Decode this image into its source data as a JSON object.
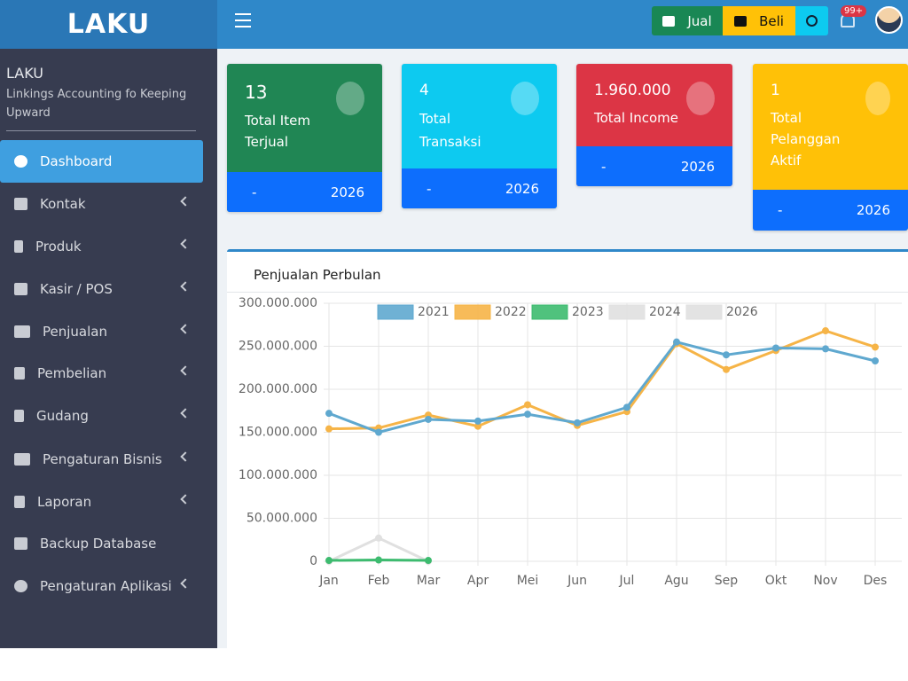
{
  "navbar": {
    "logo": "LAKU",
    "buttons": [
      "Jual",
      "Beli"
    ],
    "notification_badge": "99+"
  },
  "sidebar": {
    "brand": "LAKU",
    "subtitle": "Linkings Accounting fo Keeping Upward",
    "menu": [
      "Dashboard",
      "Kontak",
      "Produk",
      "Kasir / POS",
      "Penjualan",
      "Pembelian",
      "Gudang",
      "Pengaturan Bisnis",
      "Laporan",
      "Backup Database",
      "Pengaturan Aplikasi"
    ]
  },
  "cards": [
    {
      "value": "13",
      "label": "Total Item Terjual",
      "footer_left": "-",
      "footer_right": "2026"
    },
    {
      "value": "4",
      "label": "Total Transaksi",
      "footer_left": "-",
      "footer_right": "2026"
    },
    {
      "value": "1.960.000",
      "label": "Total Income",
      "footer_left": "-",
      "footer_right": "2026"
    },
    {
      "value": "1",
      "label": "Total Pelanggan Aktif",
      "footer_left": "-",
      "footer_right": "2026"
    }
  ],
  "chart_card": {
    "title": "Penjualan Perbulan"
  },
  "chart_data": {
    "type": "line",
    "categories": [
      "Jan",
      "Feb",
      "Mar",
      "Apr",
      "Mei",
      "Jun",
      "Jul",
      "Agu",
      "Sep",
      "Okt",
      "Nov",
      "Des"
    ],
    "series": [
      {
        "name": "2021",
        "color": "#5fa8cf",
        "values": [
          172000000,
          150000000,
          165000000,
          163000000,
          171000000,
          161000000,
          179000000,
          255000000,
          240000000,
          248000000,
          247000000,
          233000000
        ]
      },
      {
        "name": "2022",
        "color": "#f6b447",
        "values": [
          154000000,
          155000000,
          170000000,
          157000000,
          182000000,
          158000000,
          174000000,
          253000000,
          223000000,
          245000000,
          268000000,
          249000000
        ]
      },
      {
        "name": "2023",
        "color": "#3dbb6f",
        "values": [
          1000000,
          1500000,
          1000000,
          null,
          null,
          null,
          null,
          null,
          null,
          null,
          null,
          null
        ]
      },
      {
        "name": "2024",
        "color": "#e0e0e0",
        "values": [
          0,
          27000000,
          0,
          null,
          null,
          null,
          null,
          null,
          null,
          null,
          null,
          null
        ]
      },
      {
        "name": "2026",
        "color": "#e0e0e0",
        "values": [
          null,
          null,
          null,
          null,
          null,
          null,
          null,
          null,
          null,
          null,
          null,
          null
        ]
      }
    ],
    "ylim": [
      0,
      300000000
    ],
    "yticks": [
      0,
      {
        "value": 50000000,
        "label": "50.000.000"
      },
      {
        "value": 100000000,
        "label": "100.000.000"
      },
      {
        "value": 150000000,
        "label": "150.000.000"
      },
      {
        "value": 200000000,
        "label": "200.000.000"
      },
      {
        "value": 250000000,
        "label": "250.000.000"
      },
      {
        "value": 300000000,
        "label": "300.000.000"
      }
    ],
    "grid": true,
    "legend": "top"
  }
}
